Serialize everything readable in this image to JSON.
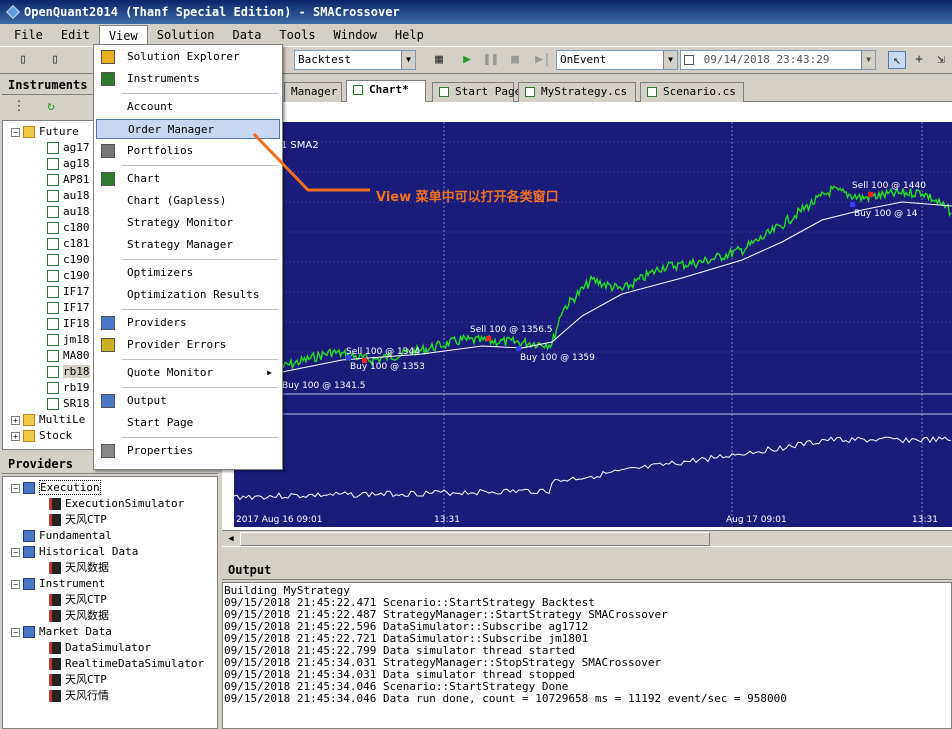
{
  "window": {
    "title": "OpenQuant2014 (Thanf Special Edition) - SMACrossover"
  },
  "menubar": [
    "File",
    "Edit",
    "View",
    "Solution",
    "Data",
    "Tools",
    "Window",
    "Help"
  ],
  "toolbar": {
    "mode": "Backtest",
    "event_mode": "OnEvent",
    "datetime": "09/14/2018 23:43:29"
  },
  "instruments": {
    "title": "Instruments",
    "items": [
      {
        "label": "Future",
        "type": "folder",
        "expanded": true
      },
      {
        "label": "ag17",
        "type": "doc"
      },
      {
        "label": "ag18",
        "type": "doc"
      },
      {
        "label": "AP81",
        "type": "doc"
      },
      {
        "label": "au18",
        "type": "doc"
      },
      {
        "label": "au18",
        "type": "doc"
      },
      {
        "label": "c180",
        "type": "doc"
      },
      {
        "label": "c181",
        "type": "doc"
      },
      {
        "label": "c190",
        "type": "doc"
      },
      {
        "label": "c190",
        "type": "doc"
      },
      {
        "label": "IF17",
        "type": "doc"
      },
      {
        "label": "IF17",
        "type": "doc"
      },
      {
        "label": "IF18",
        "type": "doc"
      },
      {
        "label": "jm18",
        "type": "doc"
      },
      {
        "label": "MA80",
        "type": "doc"
      },
      {
        "label": "rb18",
        "type": "doc"
      },
      {
        "label": "rb19",
        "type": "doc"
      },
      {
        "label": "SR18",
        "type": "doc"
      },
      {
        "label": "MultiLe",
        "type": "folder",
        "expanded": false
      },
      {
        "label": "Stock",
        "type": "folder",
        "expanded": false
      }
    ]
  },
  "providers": {
    "title": "Providers",
    "items": [
      {
        "label": "Execution",
        "level": 0,
        "type": "srv",
        "expanded": true
      },
      {
        "label": "ExecutionSimulator",
        "level": 1,
        "type": "plug"
      },
      {
        "label": "天风CTP",
        "level": 1,
        "type": "plug"
      },
      {
        "label": "Fundamental",
        "level": 0,
        "type": "srv",
        "expanded": null
      },
      {
        "label": "Historical Data",
        "level": 0,
        "type": "srv",
        "expanded": true
      },
      {
        "label": "天风数据",
        "level": 1,
        "type": "plug"
      },
      {
        "label": "Instrument",
        "level": 0,
        "type": "srv",
        "expanded": true
      },
      {
        "label": "天风CTP",
        "level": 1,
        "type": "plug"
      },
      {
        "label": "天风数据",
        "level": 1,
        "type": "plug"
      },
      {
        "label": "Market Data",
        "level": 0,
        "type": "srv",
        "expanded": true
      },
      {
        "label": "DataSimulator",
        "level": 1,
        "type": "plug"
      },
      {
        "label": "RealtimeDataSimulator",
        "level": 1,
        "type": "plug"
      },
      {
        "label": "天风CTP",
        "level": 1,
        "type": "plug"
      },
      {
        "label": "天风行情",
        "level": 1,
        "type": "plug"
      }
    ]
  },
  "tabs": [
    {
      "label": "Manager",
      "active": false
    },
    {
      "label": "Chart*",
      "active": true
    },
    {
      "label": "Start Page",
      "active": false
    },
    {
      "label": "MyStrategy.cs",
      "active": false
    },
    {
      "label": "Scenario.cs",
      "active": false
    }
  ],
  "view_menu": {
    "items": [
      {
        "label": "Solution Explorer",
        "icon": "cube-icon"
      },
      {
        "label": "Instruments",
        "icon": "list-icon"
      },
      {
        "sep": true
      },
      {
        "label": "Account",
        "icon": ""
      },
      {
        "label": "Order Manager",
        "icon": "",
        "highlighted": true
      },
      {
        "label": "Portfolios",
        "icon": "portfolio-icon"
      },
      {
        "sep": true
      },
      {
        "label": "Chart",
        "icon": "chart-icon"
      },
      {
        "label": "Chart (Gapless)",
        "icon": ""
      },
      {
        "label": "Strategy Monitor",
        "icon": ""
      },
      {
        "label": "Strategy Manager",
        "icon": ""
      },
      {
        "sep": true
      },
      {
        "label": "Optimizers",
        "icon": ""
      },
      {
        "label": "Optimization Results",
        "icon": ""
      },
      {
        "sep": true
      },
      {
        "label": "Providers",
        "icon": "providers-icon"
      },
      {
        "label": "Provider Errors",
        "icon": "warning-icon"
      },
      {
        "sep": true
      },
      {
        "label": "Quote Monitor",
        "icon": "",
        "submenu": true
      },
      {
        "sep": true
      },
      {
        "label": "Output",
        "icon": "output-icon"
      },
      {
        "label": "Start Page",
        "icon": ""
      },
      {
        "sep": true
      },
      {
        "label": "Properties",
        "icon": "properties-icon"
      }
    ]
  },
  "annotation": "View 菜单中可以打开各类窗口",
  "chart": {
    "legend_label": "A1  SMA2",
    "x_labels": [
      "2017 Aug 16 09:01",
      "13:31",
      "Aug 17 09:01",
      "13:31"
    ],
    "trades": [
      {
        "text": "Buy 100 @ 1341.5",
        "kind": "buy"
      },
      {
        "text": "Sell 100 @ 1344",
        "kind": "sell"
      },
      {
        "text": "Buy 100 @ 1353",
        "kind": "buy"
      },
      {
        "text": "Sell 100 @ 1356.5",
        "kind": "sell"
      },
      {
        "text": "Buy 100 @ 1359",
        "kind": "buy"
      },
      {
        "text": "Sell 100 @ 1440",
        "kind": "sell"
      },
      {
        "text": "Buy 100 @ 14",
        "kind": "buy"
      }
    ],
    "colors": {
      "background": "#1b1b7a",
      "price": "#22dd22",
      "sma": "#ffffff"
    }
  },
  "output": {
    "title": "Output",
    "lines": [
      "Building MyStrategy",
      "09/15/2018 21:45:22.471 Scenario::StartStrategy Backtest",
      "09/15/2018 21:45:22.487 StrategyManager::StartStrategy SMACrossover",
      "09/15/2018 21:45:22.596 DataSimulator::Subscribe ag1712",
      "09/15/2018 21:45:22.721 DataSimulator::Subscribe jm1801",
      "09/15/2018 21:45:22.799 Data simulator thread started",
      "09/15/2018 21:45:34.031 StrategyManager::StopStrategy SMACrossover",
      "09/15/2018 21:45:34.031 Data simulator thread stopped",
      "09/15/2018 21:45:34.046 Scenario::StartStrategy Done",
      "09/15/2018 21:45:34.046 Data run done, count = 10729658 ms = 11192 event/sec = 958000"
    ]
  }
}
